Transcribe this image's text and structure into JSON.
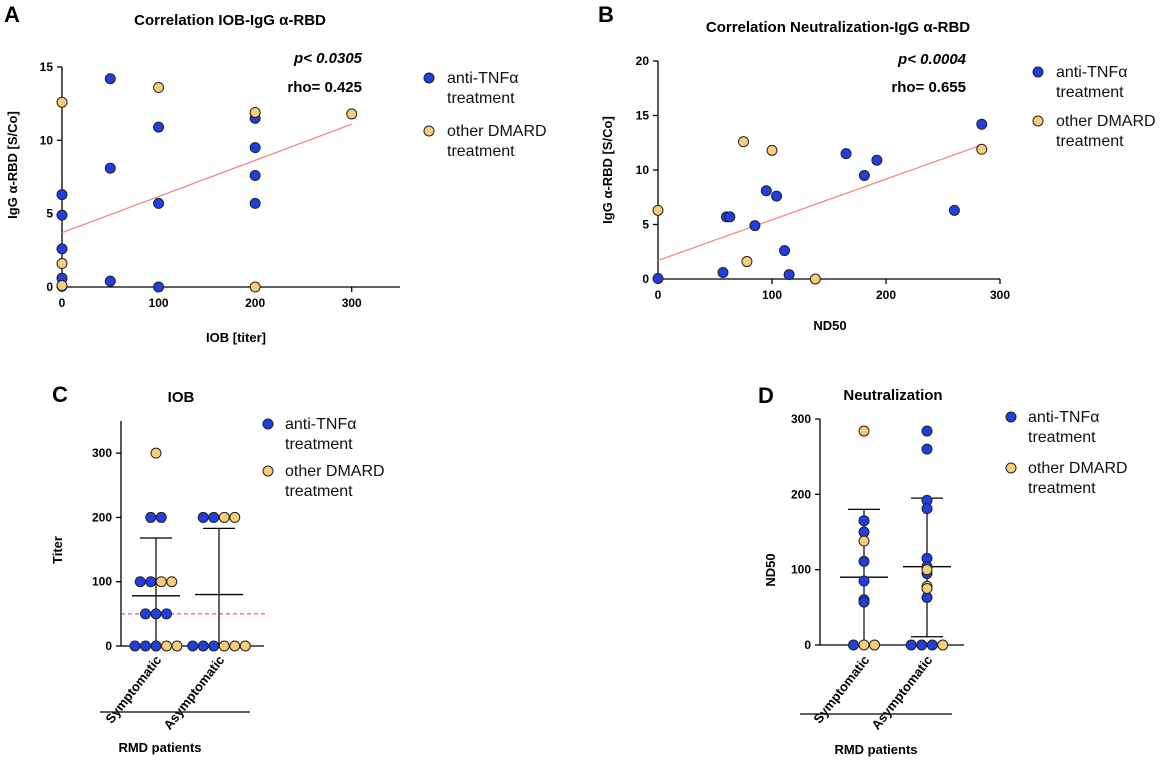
{
  "colors": {
    "anti": "#1f3fe0",
    "other": "#f7cd78",
    "fit": "#f08080",
    "threshold": "#e03030",
    "stroke": "#222222"
  },
  "chart_data": [
    {
      "id": "A",
      "type": "scatter",
      "letter": "A",
      "title": "Correlation IOB-IgG α-RBD",
      "xlabel": "IOB [titer]",
      "ylabel": "IgG α-RBD [S/Co]",
      "xlim": [
        0,
        350
      ],
      "ylim": [
        0,
        15
      ],
      "xticks": [
        0,
        100,
        200,
        300
      ],
      "yticks": [
        0,
        5,
        10,
        15
      ],
      "stats": {
        "p": "p< 0.0305",
        "rho": "rho= 0.425"
      },
      "fit": {
        "x": [
          0,
          300
        ],
        "y": [
          3.7,
          11.1
        ]
      },
      "legend": {
        "anti_line1": "anti-TNFα",
        "anti_line2": "treatment",
        "other_line1": "other DMARD",
        "other_line2": "treatment"
      },
      "series": [
        {
          "name": "anti-TNFα treatment",
          "group": "anti",
          "points": [
            [
              0,
              6.3
            ],
            [
              0,
              4.9
            ],
            [
              0,
              2.6
            ],
            [
              0,
              0.6
            ],
            [
              0,
              0.05
            ],
            [
              50,
              14.2
            ],
            [
              50,
              8.1
            ],
            [
              50,
              0.4
            ],
            [
              100,
              10.9
            ],
            [
              100,
              5.7
            ],
            [
              100,
              0
            ],
            [
              200,
              11.5
            ],
            [
              200,
              9.5
            ],
            [
              200,
              7.6
            ],
            [
              200,
              5.7
            ]
          ]
        },
        {
          "name": "other DMARD treatment",
          "group": "other",
          "points": [
            [
              0,
              12.6
            ],
            [
              0,
              1.6
            ],
            [
              0,
              0.1
            ],
            [
              100,
              13.6
            ],
            [
              200,
              11.9
            ],
            [
              200,
              0
            ],
            [
              300,
              11.8
            ]
          ]
        }
      ]
    },
    {
      "id": "B",
      "type": "scatter",
      "letter": "B",
      "title": "Correlation Neutralization-IgG α-RBD",
      "xlabel": "ND50",
      "ylabel": "IgG α-RBD [S/Co]",
      "xlim": [
        0,
        300
      ],
      "ylim": [
        0,
        20
      ],
      "xticks": [
        0,
        100,
        200,
        300
      ],
      "yticks": [
        0,
        5,
        10,
        15,
        20
      ],
      "stats": {
        "p": "p< 0.0004",
        "rho": "rho= 0.655"
      },
      "fit": {
        "x": [
          0,
          284
        ],
        "y": [
          1.7,
          12.3
        ]
      },
      "legend": {
        "anti_line1": "anti-TNFα",
        "anti_line2": "treatment",
        "other_line1": "other DMARD",
        "other_line2": "treatment"
      },
      "series": [
        {
          "name": "anti-TNFα treatment",
          "group": "anti",
          "points": [
            [
              284,
              14.2
            ],
            [
              165,
              11.5
            ],
            [
              192,
              10.9
            ],
            [
              181,
              9.5
            ],
            [
              95,
              8.1
            ],
            [
              104,
              7.6
            ],
            [
              260,
              6.3
            ],
            [
              60,
              5.7
            ],
            [
              63,
              5.7
            ],
            [
              85,
              4.9
            ],
            [
              111,
              2.6
            ],
            [
              57,
              0.6
            ],
            [
              115,
              0.4
            ],
            [
              0,
              0.05
            ]
          ]
        },
        {
          "name": "other DMARD treatment",
          "group": "other",
          "points": [
            [
              0,
              6.3
            ],
            [
              75,
              12.6
            ],
            [
              100,
              11.8
            ],
            [
              284,
              11.9
            ],
            [
              78,
              1.6
            ],
            [
              138,
              0
            ]
          ]
        }
      ]
    },
    {
      "id": "C",
      "type": "scatter",
      "letter": "C",
      "title": "IOB",
      "ylabel": "Titer",
      "ylim": [
        0,
        350
      ],
      "yticks": [
        0,
        100,
        200,
        300
      ],
      "categories": [
        "Symptomatic",
        "Asymptomatic"
      ],
      "group_label": "RMD patients",
      "threshold": 50,
      "summary": [
        {
          "mean": 78,
          "sd_low": 0,
          "sd_high": 168
        },
        {
          "mean": 80,
          "sd_low": 0,
          "sd_high": 183
        }
      ],
      "legend": {
        "anti_line1": "anti-TNFα",
        "anti_line2": "treatment",
        "other_line1": "other DMARD",
        "other_line2": "treatment"
      },
      "series": [
        {
          "name": "anti-TNFα treatment",
          "group": "anti",
          "points": [
            [
              0,
              200
            ],
            [
              0,
              200
            ],
            [
              0,
              100
            ],
            [
              0,
              100
            ],
            [
              0,
              50
            ],
            [
              0,
              50
            ],
            [
              0,
              50
            ],
            [
              0,
              0
            ],
            [
              0,
              0
            ],
            [
              0,
              0
            ],
            [
              1,
              200
            ],
            [
              1,
              200
            ],
            [
              1,
              0
            ],
            [
              1,
              0
            ],
            [
              1,
              0
            ]
          ]
        },
        {
          "name": "other DMARD treatment",
          "group": "other",
          "points": [
            [
              0,
              300
            ],
            [
              0,
              100
            ],
            [
              0,
              100
            ],
            [
              0,
              0
            ],
            [
              0,
              0
            ],
            [
              1,
              200
            ],
            [
              1,
              200
            ],
            [
              1,
              0
            ],
            [
              1,
              0
            ],
            [
              1,
              0
            ]
          ]
        }
      ]
    },
    {
      "id": "D",
      "type": "scatter",
      "letter": "D",
      "title": "Neutralization",
      "ylabel": "ND50",
      "ylim": [
        0,
        300
      ],
      "yticks": [
        0,
        100,
        200,
        300
      ],
      "categories": [
        "Symptomatic",
        "Asymptomatic"
      ],
      "group_label": "RMD patients",
      "summary": [
        {
          "mean": 90,
          "sd_low": 0,
          "sd_high": 180
        },
        {
          "mean": 104,
          "sd_low": 11,
          "sd_high": 195
        }
      ],
      "legend": {
        "anti_line1": "anti-TNFα",
        "anti_line2": "treatment",
        "other_line1": "other DMARD",
        "other_line2": "treatment"
      },
      "series": [
        {
          "name": "anti-TNFα treatment",
          "group": "anti",
          "points": [
            [
              0,
              165
            ],
            [
              0,
              150
            ],
            [
              0,
              111
            ],
            [
              0,
              85
            ],
            [
              0,
              60
            ],
            [
              0,
              57
            ],
            [
              0,
              0
            ],
            [
              1,
              284
            ],
            [
              1,
              260
            ],
            [
              1,
              192
            ],
            [
              1,
              181
            ],
            [
              1,
              115
            ],
            [
              1,
              104
            ],
            [
              1,
              95
            ],
            [
              1,
              63
            ],
            [
              1,
              0
            ],
            [
              1,
              0
            ],
            [
              1,
              0
            ]
          ]
        },
        {
          "name": "other DMARD treatment",
          "group": "other",
          "points": [
            [
              0,
              284
            ],
            [
              0,
              138
            ],
            [
              0,
              0
            ],
            [
              0,
              0
            ],
            [
              1,
              100
            ],
            [
              1,
              78
            ],
            [
              1,
              75
            ],
            [
              1,
              0
            ]
          ]
        }
      ]
    }
  ]
}
